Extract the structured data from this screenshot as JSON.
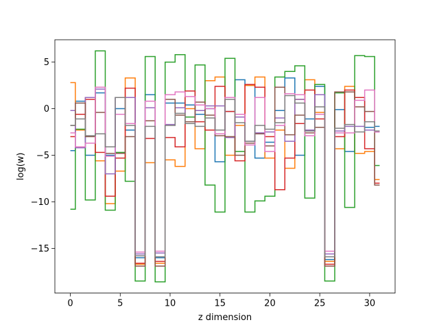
{
  "chart_data": {
    "type": "line",
    "drawstyle": "steps-mid",
    "title": "",
    "xlabel": "z dimension",
    "ylabel": "log(w)",
    "xlim": [
      -1.55,
      32.55
    ],
    "ylim": [
      -19.8,
      7.4
    ],
    "xticks": [
      0,
      5,
      10,
      15,
      20,
      25,
      30
    ],
    "yticks": [
      5,
      0,
      -5,
      -10,
      -15
    ],
    "grid": false,
    "legend": "none",
    "x": [
      0,
      1,
      2,
      3,
      4,
      5,
      6,
      7,
      8,
      9,
      10,
      11,
      12,
      13,
      14,
      15,
      16,
      17,
      18,
      19,
      20,
      21,
      22,
      23,
      24,
      25,
      26,
      27,
      28,
      29,
      30,
      31
    ],
    "series": [
      {
        "color": "#1f77b4",
        "values": [
          -4.5,
          0.8,
          -5.0,
          1.7,
          -5.0,
          0.0,
          -2.3,
          -16.0,
          1.5,
          -16.0,
          0.6,
          0.6,
          0.4,
          -0.6,
          0.0,
          -5.7,
          -0.3,
          3.1,
          2.5,
          -5.3,
          -3.6,
          -0.2,
          3.3,
          -5.0,
          -1.1,
          2.4,
          -16.2,
          -0.1,
          -4.6,
          1.2,
          -2.0,
          -1.9
        ]
      },
      {
        "color": "#ff7f0e",
        "values": [
          2.8,
          -2.3,
          1.2,
          -5.6,
          -10.2,
          -6.7,
          3.3,
          -16.7,
          -5.8,
          -16.6,
          -5.5,
          -6.2,
          0.0,
          -4.3,
          3.0,
          3.4,
          -5.0,
          -1.8,
          2.5,
          3.4,
          -5.3,
          -2.3,
          -6.4,
          1.0,
          3.1,
          -0.4,
          -16.4,
          -4.3,
          2.4,
          -4.8,
          -4.6,
          -7.6
        ]
      },
      {
        "color": "#2ca02c",
        "values": [
          -10.8,
          -2.2,
          -9.8,
          6.2,
          -10.9,
          -4.7,
          -7.8,
          -18.5,
          5.6,
          -18.6,
          5.0,
          5.8,
          -0.9,
          4.7,
          -8.2,
          -11.1,
          5.4,
          -4.6,
          -11.1,
          -9.9,
          -9.4,
          3.4,
          4.0,
          4.6,
          -9.6,
          2.6,
          -18.5,
          1.7,
          -10.6,
          5.7,
          5.6,
          -6.1
        ]
      },
      {
        "color": "#d62728",
        "values": [
          -3.0,
          -0.6,
          1.0,
          -4.7,
          -9.4,
          -5.3,
          2.2,
          -16.6,
          -3.2,
          -16.4,
          -3.1,
          -4.1,
          1.9,
          -1.4,
          -2.3,
          2.4,
          -0.3,
          -5.6,
          2.6,
          2.3,
          -3.0,
          -8.7,
          -5.3,
          -1.6,
          2.0,
          -1.1,
          -16.7,
          -3.0,
          2.0,
          1.2,
          -4.3,
          -8.0
        ]
      },
      {
        "color": "#9467bd",
        "values": [
          -0.2,
          -4.2,
          1.2,
          2.1,
          -7.0,
          1.2,
          1.2,
          -15.6,
          0.1,
          -15.5,
          -1.7,
          0.1,
          -1.6,
          -0.2,
          0.3,
          0.3,
          -3.1,
          -0.9,
          -3.5,
          -2.6,
          -2.5,
          -1.0,
          -3.5,
          1.0,
          -2.3,
          1.5,
          -15.6,
          -2.4,
          -1.9,
          -1.9,
          -2.3,
          -2.5
        ]
      },
      {
        "color": "#8c564b",
        "values": [
          -1.8,
          0.6,
          -3.0,
          -0.4,
          -4.8,
          -4.8,
          -3.0,
          -16.9,
          -1.3,
          -16.9,
          1.0,
          -0.7,
          -1.4,
          0.7,
          -0.7,
          -2.9,
          -3.0,
          -5.0,
          -3.7,
          -2.7,
          -4.0,
          2.3,
          -2.8,
          -0.7,
          -2.6,
          -2.0,
          -16.9,
          1.8,
          1.8,
          0.2,
          -0.3,
          -8.2
        ]
      },
      {
        "color": "#e377c2",
        "values": [
          -2.6,
          -4.1,
          -3.7,
          2.3,
          -5.1,
          -0.6,
          -1.6,
          -15.4,
          0.8,
          -15.3,
          1.5,
          1.8,
          1.3,
          0.4,
          0.0,
          -2.7,
          1.2,
          -0.6,
          -3.9,
          1.2,
          -4.6,
          -1.8,
          1.6,
          1.5,
          -2.9,
          -0.6,
          -15.3,
          -2.6,
          -2.6,
          0.9,
          2.0,
          -2.5
        ]
      },
      {
        "color": "#7f7f7f",
        "values": [
          -1.8,
          -1.1,
          -2.9,
          -2.7,
          -4.1,
          1.2,
          -1.8,
          -15.8,
          -1.9,
          -15.9,
          -1.8,
          -0.5,
          -1.6,
          -1.9,
          -1.0,
          -2.3,
          1.0,
          -1.5,
          -3.5,
          -1.8,
          -2.2,
          -1.5,
          1.4,
          0.6,
          -2.4,
          0.2,
          -15.9,
          -2.1,
          -1.7,
          -2.5,
          -1.4,
          -2.4
        ]
      }
    ]
  }
}
